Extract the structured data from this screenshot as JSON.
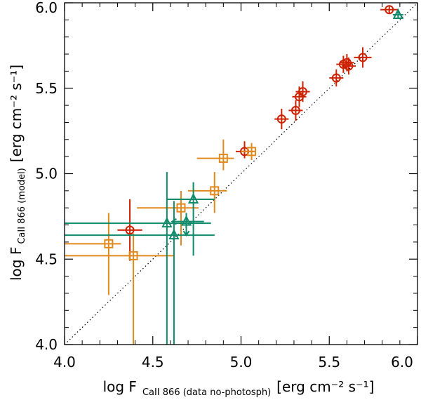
{
  "chart_data": {
    "type": "scatter",
    "title": "",
    "xlabel": {
      "main": "log F",
      "subscript": "CaII 866 (data no-photosph)",
      "units": "[erg cm⁻² s⁻¹]"
    },
    "ylabel": {
      "main": "log F",
      "subscript": "CaII 866 (model)",
      "units": "[erg cm⁻² s⁻¹]"
    },
    "xlim": [
      4.0,
      6.0
    ],
    "ylim": [
      4.0,
      6.0
    ],
    "xticks": [
      "4.0",
      "4.5",
      "5.0",
      "5.5",
      "6.0"
    ],
    "yticks": [
      "4.0",
      "4.5",
      "5.0",
      "5.5",
      "6.0"
    ],
    "reference_line": {
      "style": "dotted",
      "from": [
        4.0,
        4.0
      ],
      "to": [
        6.0,
        6.0
      ]
    },
    "series": [
      {
        "name": "circles",
        "marker": "circle",
        "color": "#cc2200",
        "points": [
          {
            "x": 4.37,
            "y": 4.67,
            "xerr": [
              0.07,
              0.07
            ],
            "yerr": [
              0.18,
              0.18
            ]
          },
          {
            "x": 5.02,
            "y": 5.13,
            "xerr": [
              0.05,
              0.05
            ],
            "yerr": [
              0.04,
              0.06
            ]
          },
          {
            "x": 5.23,
            "y": 5.32,
            "xerr": [
              0.04,
              0.04
            ],
            "yerr": [
              0.06,
              0.06
            ]
          },
          {
            "x": 5.31,
            "y": 5.37,
            "xerr": [
              0.04,
              0.04
            ],
            "yerr": [
              0.06,
              0.06
            ]
          },
          {
            "x": 5.33,
            "y": 5.45,
            "xerr": [
              0.04,
              0.04
            ],
            "yerr": [
              0.06,
              0.06
            ]
          },
          {
            "x": 5.35,
            "y": 5.48,
            "xerr": [
              0.04,
              0.04
            ],
            "yerr": [
              0.06,
              0.06
            ]
          },
          {
            "x": 5.54,
            "y": 5.56,
            "xerr": [
              0.04,
              0.04
            ],
            "yerr": [
              0.05,
              0.05
            ]
          },
          {
            "x": 5.58,
            "y": 5.64,
            "xerr": [
              0.04,
              0.04
            ],
            "yerr": [
              0.05,
              0.05
            ]
          },
          {
            "x": 5.6,
            "y": 5.65,
            "xerr": [
              0.04,
              0.04
            ],
            "yerr": [
              0.05,
              0.05
            ]
          },
          {
            "x": 5.61,
            "y": 5.63,
            "xerr": [
              0.04,
              0.04
            ],
            "yerr": [
              0.05,
              0.05
            ]
          },
          {
            "x": 5.69,
            "y": 5.68,
            "xerr": [
              0.05,
              0.05
            ],
            "yerr": [
              0.06,
              0.06
            ]
          },
          {
            "x": 5.84,
            "y": 5.96,
            "xerr": [
              0.05,
              0.05
            ],
            "yerr": [
              0.02,
              0.02
            ]
          }
        ]
      },
      {
        "name": "squares",
        "marker": "square",
        "color": "#e08a1e",
        "points": [
          {
            "x": 4.25,
            "y": 4.59,
            "xerr": [
              0.25,
              0.07
            ],
            "yerr": [
              0.3,
              0.18
            ]
          },
          {
            "x": 4.39,
            "y": 4.52,
            "xerr": [
              0.39,
              0.23
            ],
            "yerr": [
              0.52,
              0.13
            ]
          },
          {
            "x": 4.66,
            "y": 4.8,
            "xerr": [
              0.25,
              0.1
            ],
            "yerr": [
              0.22,
              0.1
            ]
          },
          {
            "x": 4.85,
            "y": 4.9,
            "xerr": [
              0.15,
              0.07
            ],
            "yerr": [
              0.13,
              0.11
            ]
          },
          {
            "x": 4.9,
            "y": 5.09,
            "xerr": [
              0.15,
              0.06
            ],
            "yerr": [
              0.07,
              0.11
            ]
          },
          {
            "x": 5.06,
            "y": 5.13,
            "xerr": [
              0.06,
              0.02
            ],
            "yerr": [
              0.05,
              0.05
            ]
          }
        ]
      },
      {
        "name": "triangles",
        "marker": "triangle",
        "color": "#0f8a6a",
        "points": [
          {
            "x": 4.58,
            "y": 4.71,
            "xerr": [
              0.58,
              0.25
            ],
            "yerr": [
              0.71,
              0.3
            ]
          },
          {
            "x": 4.62,
            "y": 4.64,
            "xerr": [
              0.62,
              0.23
            ],
            "yerr": [
              0.64,
              0.2
            ]
          },
          {
            "x": 4.69,
            "y": 4.72,
            "xerr": [
              0.08,
              0.1
            ],
            "yerr": [
              0.08,
              0.05
            ],
            "arrows": true
          },
          {
            "x": 4.73,
            "y": 4.85,
            "xerr": [
              0.15,
              0.12
            ],
            "yerr": [
              0.33,
              0.1
            ]
          },
          {
            "x": 5.89,
            "y": 5.93,
            "xerr": [
              0.03,
              0.03
            ],
            "yerr": [
              0.02,
              0.02
            ]
          }
        ]
      }
    ]
  }
}
